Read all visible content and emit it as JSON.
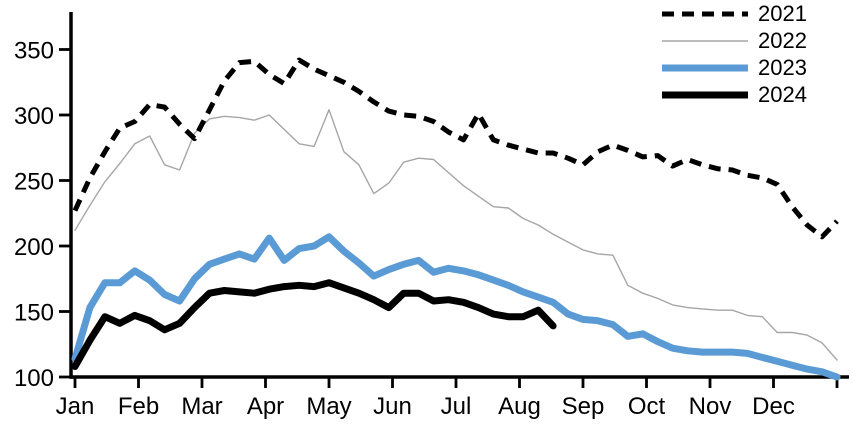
{
  "chart_data": {
    "type": "line",
    "title": "",
    "xlabel": "",
    "ylabel": "",
    "x_axis": {
      "categories": [
        "Jan",
        "Feb",
        "Mar",
        "Apr",
        "May",
        "Jun",
        "Jul",
        "Aug",
        "Sep",
        "Oct",
        "Nov",
        "Dec"
      ]
    },
    "y_axis": {
      "ticks": [
        100,
        150,
        200,
        250,
        300,
        350
      ],
      "range": [
        100,
        378
      ]
    },
    "x_sampling": "weekly, 52 points spanning Jan-Dec",
    "grid": "off",
    "legend_position": "top-right",
    "series": [
      {
        "name": "2021",
        "color": "#000000",
        "stroke_width": 5,
        "dash": "12 8",
        "values": [
          227,
          252,
          272,
          290,
          295,
          308,
          306,
          293,
          282,
          304,
          326,
          340,
          341,
          331,
          324,
          342,
          335,
          330,
          325,
          318,
          310,
          303,
          300,
          299,
          295,
          287,
          281,
          301,
          281,
          277,
          274,
          271,
          271,
          267,
          262,
          272,
          277,
          273,
          268,
          269,
          261,
          266,
          262,
          259,
          258,
          254,
          252,
          247,
          230,
          216,
          207,
          219
        ]
      },
      {
        "name": "2022",
        "color": "#A6A6A6",
        "stroke_width": 1.4,
        "dash": "",
        "values": [
          212,
          231,
          249,
          263,
          278,
          284,
          262,
          258,
          286,
          297,
          299,
          298,
          296,
          300,
          289,
          278,
          276,
          304,
          272,
          262,
          240,
          248,
          264,
          267,
          266,
          256,
          246,
          238,
          230,
          229,
          221,
          216,
          209,
          203,
          197,
          194,
          193,
          170,
          164,
          160,
          155,
          153,
          152,
          151,
          151,
          147,
          146,
          134,
          134,
          132,
          126,
          113
        ]
      },
      {
        "name": "2023",
        "color": "#5B9BD5",
        "stroke_width": 7,
        "dash": "",
        "values": [
          114,
          153,
          172,
          172,
          181,
          174,
          163,
          158,
          175,
          186,
          190,
          194,
          190,
          206,
          189,
          198,
          200,
          207,
          196,
          187,
          177,
          182,
          186,
          189,
          180,
          183,
          181,
          178,
          174,
          170,
          165,
          161,
          157,
          148,
          144,
          143,
          140,
          131,
          133,
          127,
          122,
          120,
          119,
          119,
          119,
          118,
          115,
          112,
          109,
          106,
          104,
          100
        ]
      },
      {
        "name": "2024",
        "color": "#000000",
        "stroke_width": 7,
        "dash": "",
        "values": [
          108,
          128,
          146,
          141,
          147,
          143,
          136,
          141,
          153,
          164,
          166,
          165,
          164,
          167,
          169,
          170,
          169,
          172,
          168,
          164,
          159,
          153,
          164,
          164,
          158,
          159,
          157,
          153,
          148,
          146,
          146,
          151,
          139
        ]
      }
    ]
  }
}
